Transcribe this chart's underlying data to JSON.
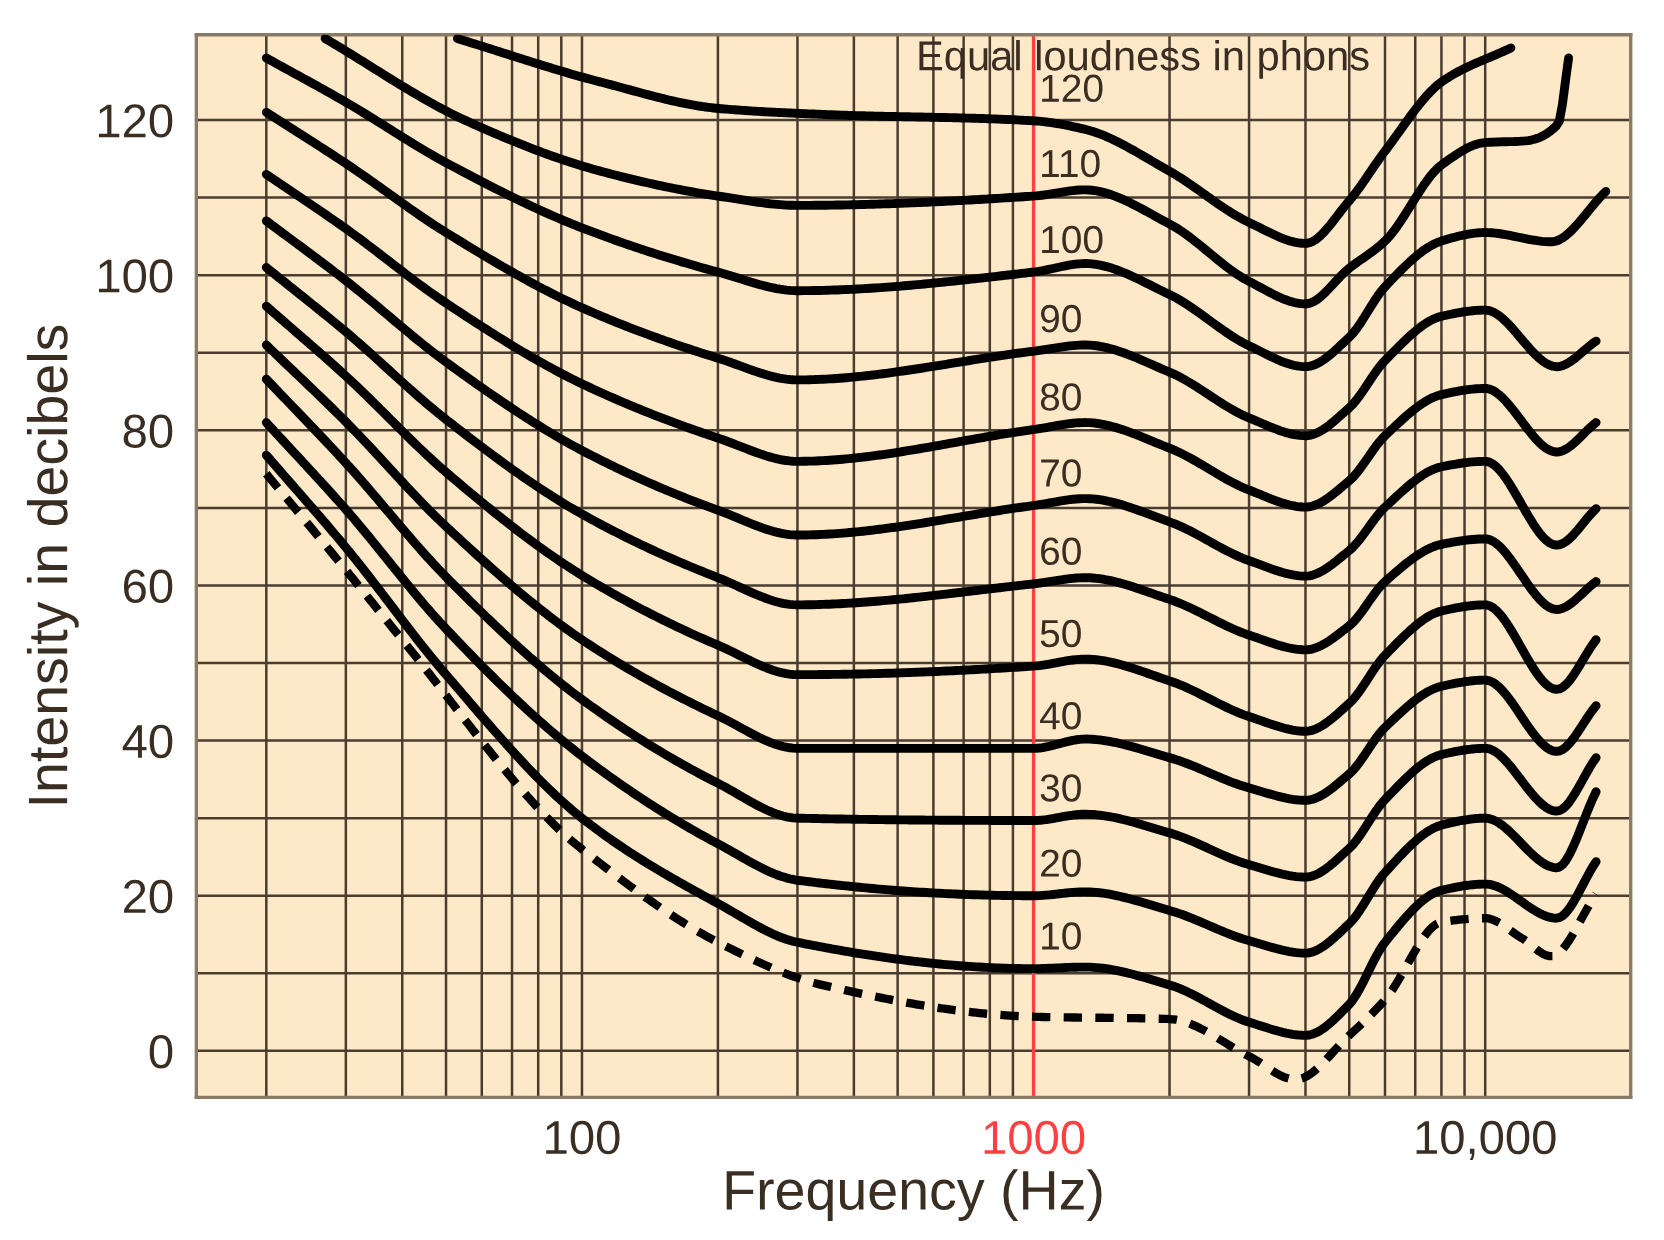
{
  "chart_data": {
    "type": "line",
    "xlabel": "Frequency (Hz)",
    "ylabel": "Intensity in decibels",
    "annotations": [
      "Equal loudness in phons"
    ],
    "log": "x",
    "grid": true,
    "line_style": "solid",
    "xlim": [
      14,
      21000
    ],
    "ylim": [
      -6,
      131
    ],
    "xticks": [
      {
        "value": 20,
        "label": null
      },
      {
        "value": 30,
        "label": null
      },
      {
        "value": 40,
        "label": null
      },
      {
        "value": 50,
        "label": null
      },
      {
        "value": 60,
        "label": null
      },
      {
        "value": 70,
        "label": null
      },
      {
        "value": 80,
        "label": null
      },
      {
        "value": 90,
        "label": null
      },
      100,
      {
        "value": 200,
        "label": null
      },
      {
        "value": 300,
        "label": null
      },
      {
        "value": 400,
        "label": null
      },
      {
        "value": 500,
        "label": null
      },
      {
        "value": 600,
        "label": null
      },
      {
        "value": 700,
        "label": null
      },
      {
        "value": 800,
        "label": null
      },
      {
        "value": 900,
        "label": null
      },
      1000,
      {
        "value": 2000,
        "label": null
      },
      {
        "value": 3000,
        "label": null
      },
      {
        "value": 4000,
        "label": null
      },
      {
        "value": 5000,
        "label": null
      },
      {
        "value": 6000,
        "label": null
      },
      {
        "value": 7000,
        "label": null
      },
      {
        "value": 8000,
        "label": null
      },
      {
        "value": 9000,
        "label": null
      },
      {
        "value": 10000,
        "label": "10,000"
      }
    ],
    "yticks": [
      0,
      {
        "value": 10,
        "label": null
      },
      20,
      {
        "value": 30,
        "label": null
      },
      40,
      {
        "value": 50,
        "label": null
      },
      60,
      {
        "value": 70,
        "label": null
      },
      80,
      {
        "value": 90,
        "label": null
      },
      100,
      {
        "value": 110,
        "label": null
      },
      120
    ],
    "ref_lines": [
      {
        "axis": "x",
        "value": 1000,
        "color": "#ff4040"
      }
    ],
    "series": [
      {
        "name": "10",
        "color": "#000000",
        "x": [
          20,
          30,
          50,
          100,
          200,
          300,
          1000,
          1300,
          2000,
          3000,
          4000,
          5000,
          6000,
          8000,
          10000,
          14400,
          17600
        ],
        "values": [
          76.8,
          64.9,
          48.5,
          30,
          19,
          14,
          10.6,
          10.8,
          8.5,
          3.7,
          2,
          6,
          14,
          20.7,
          21.5,
          17.1,
          24.4
        ]
      },
      {
        "name": "20",
        "color": "#000000",
        "x": [
          20,
          30,
          50,
          100,
          200,
          300,
          1000,
          1300,
          2000,
          3000,
          4000,
          5000,
          6000,
          8000,
          10000,
          14400,
          17600
        ],
        "values": [
          81,
          69.8,
          54.4,
          38,
          26.7,
          22,
          20,
          20.5,
          18.1,
          14.2,
          12.6,
          16.4,
          23,
          29.1,
          30,
          23.6,
          33.4
        ]
      },
      {
        "name": "30",
        "color": "#000000",
        "x": [
          20,
          30,
          50,
          100,
          200,
          300,
          1000,
          1300,
          2000,
          3000,
          4000,
          5000,
          6000,
          8000,
          10000,
          14400,
          17600
        ],
        "values": [
          86.6,
          75.8,
          61.1,
          45.3,
          34.5,
          30,
          29.7,
          30.5,
          28.1,
          24,
          22.4,
          26.1,
          32.4,
          38.2,
          39,
          30.9,
          37.8
        ]
      },
      {
        "name": "40",
        "color": "#000000",
        "x": [
          20,
          30,
          50,
          100,
          200,
          300,
          1000,
          1300,
          2000,
          3000,
          4000,
          5000,
          6000,
          8000,
          10000,
          14400,
          17600
        ],
        "values": [
          91,
          81.1,
          67.6,
          53,
          43.2,
          39,
          39,
          40.2,
          37.8,
          33.9,
          32.3,
          35.7,
          41.7,
          47,
          47.8,
          38.6,
          44.5
        ]
      },
      {
        "name": "50",
        "color": "#000000",
        "x": [
          20,
          30,
          50,
          100,
          200,
          300,
          1000,
          1300,
          2000,
          3000,
          4000,
          5000,
          6000,
          8000,
          10000,
          14400,
          17600
        ],
        "values": [
          96,
          87,
          74.6,
          61.3,
          52.3,
          48.5,
          49.6,
          50.5,
          47.7,
          43.1,
          41.2,
          44.8,
          51,
          56.7,
          57.5,
          46.6,
          53
        ]
      },
      {
        "name": "60",
        "color": "#000000",
        "x": [
          20,
          30,
          50,
          100,
          200,
          300,
          1000,
          1300,
          2000,
          3000,
          4000,
          5000,
          6000,
          8000,
          10000,
          14400,
          17600
        ],
        "values": [
          101,
          92.7,
          81.4,
          69.2,
          61,
          57.5,
          60.2,
          61,
          58.2,
          53.6,
          51.7,
          54.8,
          60.5,
          65.3,
          66,
          56.9,
          60.5
        ]
      },
      {
        "name": "70",
        "color": "#000000",
        "x": [
          20,
          30,
          50,
          100,
          200,
          300,
          1000,
          1300,
          2000,
          3000,
          4000,
          5000,
          6000,
          8000,
          10000,
          14400,
          17600
        ],
        "values": [
          107,
          99.3,
          88.8,
          77.4,
          69.7,
          66.5,
          70.3,
          71.2,
          68.2,
          63.2,
          61.2,
          64.5,
          70.1,
          75.3,
          76,
          65.2,
          69.9
        ]
      },
      {
        "name": "80",
        "color": "#000000",
        "x": [
          20,
          30,
          50,
          100,
          200,
          300,
          1000,
          1300,
          2000,
          3000,
          4000,
          5000,
          6000,
          8000,
          10000,
          14400,
          17600
        ],
        "values": [
          113,
          106,
          96.4,
          86,
          79,
          76,
          80.1,
          81,
          77.7,
          72.3,
          70.1,
          73.5,
          79.3,
          84.6,
          85.4,
          77.2,
          81
        ]
      },
      {
        "name": "90",
        "color": "#000000",
        "x": [
          20,
          30,
          50,
          100,
          200,
          300,
          1000,
          1300,
          2000,
          3000,
          4000,
          5000,
          6000,
          8000,
          10000,
          14400,
          17600
        ],
        "values": [
          121,
          114.4,
          105.5,
          95.8,
          89.3,
          86.5,
          90.2,
          91,
          87.5,
          81.6,
          79.3,
          82.9,
          89,
          94.7,
          95.5,
          88.2,
          91.5
        ]
      },
      {
        "name": "100",
        "color": "#000000",
        "x": [
          20,
          30,
          50,
          100,
          200,
          300,
          1000,
          1300,
          2000,
          3000,
          4000,
          5000,
          6000,
          8000,
          10000,
          14000,
          18500
        ],
        "values": [
          128,
          122.3,
          114.5,
          106.1,
          100.4,
          98,
          100.4,
          101.5,
          97.5,
          90.9,
          88.2,
          92,
          98.5,
          104.4,
          105.5,
          104.3,
          110.8
        ]
      },
      {
        "name": "110",
        "color": "#000000",
        "x": [
          27,
          55,
          110,
          200,
          300,
          1000,
          1300,
          2000,
          3000,
          4000,
          5000,
          6000,
          8000,
          10000,
          12200,
          14500,
          15300
        ],
        "values": [
          130.5,
          120,
          113.4,
          110.2,
          109,
          110.2,
          111,
          106.6,
          99.2,
          96.3,
          100.9,
          104.4,
          114.2,
          117.1,
          117.3,
          119.5,
          128
        ]
      },
      {
        "name": "120",
        "color": "#000000",
        "x": [
          53,
          110,
          200,
          350,
          1000,
          1300,
          2000,
          3000,
          4000,
          5000,
          6000,
          8000,
          11400
        ],
        "values": [
          130.5,
          124.9,
          121.5,
          120.7,
          119.9,
          118.8,
          113.4,
          106.8,
          104.1,
          109.6,
          116,
          124.9,
          129.3
        ]
      },
      {
        "color": "#000000",
        "line_style": "dashed",
        "x": [
          20,
          30,
          40,
          88,
          100,
          200,
          340,
          1000,
          2000,
          3000,
          3800,
          5000,
          6000,
          8000,
          10000,
          12000,
          14000,
          17600
        ],
        "values": [
          74.4,
          62,
          53,
          28.8,
          26,
          14,
          8.5,
          4.4,
          4.1,
          -0.7,
          -3.7,
          2,
          6.6,
          16.6,
          17.1,
          14.6,
          12.2,
          20.2
        ]
      }
    ]
  }
}
